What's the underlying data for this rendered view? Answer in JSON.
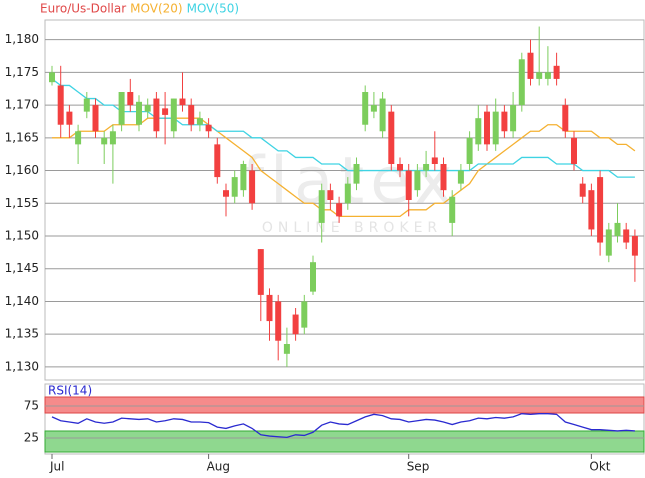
{
  "chart_data": [
    {
      "type": "candlestick",
      "watermark": "flatex",
      "watermark_sub": "ONLINE BROKER",
      "categories": [
        "Jul",
        null,
        null,
        null,
        null,
        null,
        null,
        null,
        null,
        null,
        null,
        null,
        null,
        null,
        null,
        null,
        null,
        null,
        "Aug",
        null,
        null,
        null,
        null,
        null,
        null,
        null,
        null,
        null,
        null,
        null,
        null,
        null,
        null,
        null,
        null,
        null,
        null,
        null,
        null,
        null,
        null,
        "Sep",
        null,
        null,
        null,
        null,
        null,
        null,
        null,
        null,
        null,
        null,
        null,
        null,
        null,
        null,
        null,
        null,
        null,
        null,
        null,
        null,
        "Okt",
        null,
        null,
        null,
        null,
        null
      ],
      "series": [
        {
          "name": "Euro/Us-Dollar",
          "color": "#e04848",
          "up_color": "#7ccd5c",
          "down_color": "#f24040",
          "open": [
            1.1735,
            1.173,
            1.169,
            1.164,
            1.169,
            1.17,
            1.164,
            1.164,
            1.167,
            1.172,
            1.167,
            1.169,
            1.171,
            1.1695,
            1.166,
            1.171,
            1.17,
            1.167,
            1.167,
            1.164,
            1.157,
            1.156,
            1.157,
            1.16,
            1.148,
            1.141,
            1.14,
            1.132,
            1.138,
            1.136,
            1.1415,
            1.152,
            1.157,
            1.155,
            1.155,
            1.158,
            1.167,
            1.169,
            1.166,
            1.169,
            1.161,
            1.16,
            1.157,
            1.16,
            1.162,
            1.161,
            1.152,
            1.158,
            1.161,
            1.164,
            1.169,
            1.164,
            1.169,
            1.166,
            1.17,
            1.178,
            1.174,
            1.174,
            1.176,
            1.17,
            1.165,
            1.158,
            1.157,
            1.159,
            1.147,
            1.15,
            1.151,
            1.15
          ],
          "high": [
            1.176,
            1.176,
            1.17,
            1.167,
            1.172,
            1.171,
            1.166,
            1.167,
            1.172,
            1.174,
            1.1715,
            1.171,
            1.172,
            1.172,
            1.171,
            1.175,
            1.171,
            1.169,
            1.168,
            1.165,
            1.158,
            1.16,
            1.1615,
            1.161,
            1.148,
            1.142,
            1.141,
            1.136,
            1.139,
            1.141,
            1.147,
            1.158,
            1.158,
            1.156,
            1.159,
            1.162,
            1.173,
            1.172,
            1.172,
            1.17,
            1.162,
            1.161,
            1.161,
            1.163,
            1.166,
            1.162,
            1.157,
            1.161,
            1.166,
            1.17,
            1.17,
            1.171,
            1.17,
            1.172,
            1.178,
            1.18,
            1.182,
            1.179,
            1.178,
            1.171,
            1.166,
            1.159,
            1.158,
            1.16,
            1.152,
            1.155,
            1.152,
            1.151
          ],
          "low": [
            1.173,
            1.165,
            1.165,
            1.161,
            1.168,
            1.165,
            1.161,
            1.158,
            1.166,
            1.169,
            1.166,
            1.168,
            1.165,
            1.164,
            1.165,
            1.169,
            1.166,
            1.166,
            1.165,
            1.158,
            1.153,
            1.155,
            1.156,
            1.154,
            1.137,
            1.134,
            1.131,
            1.13,
            1.134,
            1.135,
            1.141,
            1.149,
            1.154,
            1.152,
            1.154,
            1.157,
            1.166,
            1.168,
            1.165,
            1.16,
            1.159,
            1.153,
            1.156,
            1.159,
            1.16,
            1.156,
            1.15,
            1.157,
            1.16,
            1.163,
            1.163,
            1.163,
            1.165,
            1.165,
            1.169,
            1.173,
            1.173,
            1.173,
            1.173,
            1.165,
            1.16,
            1.155,
            1.15,
            1.147,
            1.146,
            1.149,
            1.148,
            1.143
          ],
          "close": [
            1.175,
            1.167,
            1.167,
            1.166,
            1.171,
            1.166,
            1.165,
            1.166,
            1.172,
            1.17,
            1.1705,
            1.17,
            1.166,
            1.1685,
            1.171,
            1.17,
            1.167,
            1.168,
            1.166,
            1.159,
            1.156,
            1.159,
            1.161,
            1.155,
            1.141,
            1.137,
            1.134,
            1.1335,
            1.135,
            1.14,
            1.146,
            1.157,
            1.1555,
            1.153,
            1.158,
            1.161,
            1.172,
            1.17,
            1.171,
            1.161,
            1.16,
            1.1555,
            1.16,
            1.161,
            1.161,
            1.157,
            1.156,
            1.16,
            1.165,
            1.168,
            1.164,
            1.169,
            1.166,
            1.17,
            1.177,
            1.174,
            1.175,
            1.175,
            1.174,
            1.166,
            1.161,
            1.156,
            1.151,
            1.149,
            1.151,
            1.152,
            1.149,
            1.147
          ]
        },
        {
          "name": "MOV(20)",
          "color": "#f5b131",
          "values": [
            1.165,
            1.165,
            1.165,
            1.166,
            1.166,
            1.166,
            1.166,
            1.167,
            1.167,
            1.167,
            1.167,
            1.168,
            1.168,
            1.168,
            1.168,
            1.168,
            1.168,
            1.168,
            1.167,
            1.166,
            1.165,
            1.164,
            1.163,
            1.162,
            1.16,
            1.159,
            1.158,
            1.157,
            1.156,
            1.155,
            1.155,
            1.154,
            1.154,
            1.153,
            1.153,
            1.153,
            1.153,
            1.153,
            1.153,
            1.153,
            1.153,
            1.154,
            1.154,
            1.154,
            1.155,
            1.155,
            1.156,
            1.157,
            1.158,
            1.16,
            1.161,
            1.162,
            1.163,
            1.164,
            1.165,
            1.166,
            1.166,
            1.167,
            1.167,
            1.166,
            1.166,
            1.166,
            1.166,
            1.165,
            1.165,
            1.164,
            1.164,
            1.163
          ]
        },
        {
          "name": "MOV(50)",
          "color": "#3fd3e3",
          "values": [
            1.174,
            1.173,
            1.173,
            1.172,
            1.171,
            1.171,
            1.17,
            1.17,
            1.169,
            1.169,
            1.169,
            1.169,
            1.168,
            1.168,
            1.168,
            1.167,
            1.167,
            1.167,
            1.167,
            1.166,
            1.166,
            1.166,
            1.166,
            1.165,
            1.165,
            1.164,
            1.163,
            1.163,
            1.162,
            1.162,
            1.162,
            1.161,
            1.161,
            1.161,
            1.16,
            1.16,
            1.16,
            1.16,
            1.16,
            1.16,
            1.16,
            1.16,
            1.16,
            1.16,
            1.16,
            1.16,
            1.16,
            1.16,
            1.16,
            1.161,
            1.161,
            1.161,
            1.161,
            1.161,
            1.162,
            1.162,
            1.162,
            1.162,
            1.161,
            1.161,
            1.161,
            1.16,
            1.16,
            1.16,
            1.16,
            1.159,
            1.159,
            1.159
          ]
        }
      ],
      "ylim": [
        1.128,
        1.183
      ],
      "yticks": [
        {
          "value": 1.13,
          "label": "1,130"
        },
        {
          "value": 1.135,
          "label": "1,135"
        },
        {
          "value": 1.14,
          "label": "1,140"
        },
        {
          "value": 1.145,
          "label": "1,145"
        },
        {
          "value": 1.15,
          "label": "1,150"
        },
        {
          "value": 1.155,
          "label": "1,155"
        },
        {
          "value": 1.16,
          "label": "1,160"
        },
        {
          "value": 1.165,
          "label": "1,165"
        },
        {
          "value": 1.17,
          "label": "1,170"
        },
        {
          "value": 1.175,
          "label": "1,175"
        },
        {
          "value": 1.18,
          "label": "1,180"
        }
      ],
      "grid": true
    },
    {
      "type": "line",
      "series": [
        {
          "name": "RSI(14)",
          "color": "#2a2ad0",
          "values": [
            58,
            52,
            50,
            48,
            55,
            50,
            48,
            50,
            56,
            55,
            54,
            55,
            50,
            52,
            55,
            54,
            50,
            50,
            49,
            42,
            40,
            44,
            47,
            40,
            30,
            28,
            27,
            26,
            30,
            29,
            34,
            45,
            50,
            47,
            46,
            52,
            58,
            62,
            60,
            55,
            54,
            50,
            52,
            54,
            53,
            50,
            46,
            50,
            52,
            56,
            55,
            57,
            56,
            58,
            63,
            62,
            63,
            63,
            62,
            50,
            46,
            42,
            38,
            38,
            37,
            36,
            37,
            36
          ]
        }
      ],
      "ylim": [
        0,
        100
      ],
      "yticks": [
        25,
        75
      ],
      "grid": true
    }
  ]
}
